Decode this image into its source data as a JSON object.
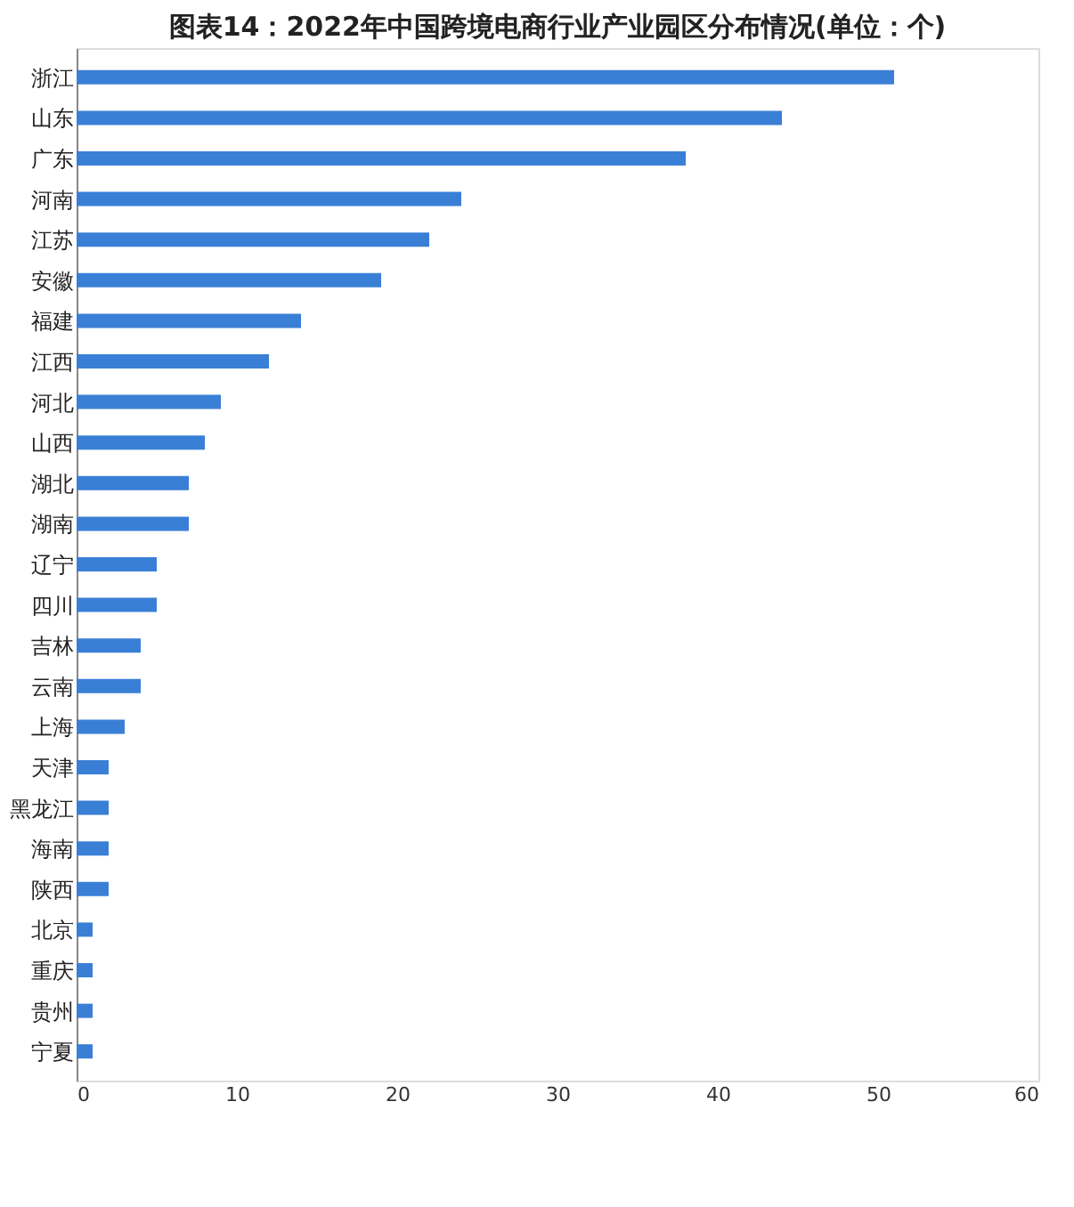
{
  "chart_data": {
    "type": "bar",
    "orientation": "horizontal",
    "title": "图表14：2022年中国跨境电商行业产业园区分布情况(单位：个)",
    "categories": [
      "浙江",
      "山东",
      "广东",
      "河南",
      "江苏",
      "安徽",
      "福建",
      "江西",
      "河北",
      "山西",
      "湖北",
      "湖南",
      "辽宁",
      "四川",
      "吉林",
      "云南",
      "上海",
      "天津",
      "黑龙江",
      "海南",
      "陕西",
      "北京",
      "重庆",
      "贵州",
      "宁夏"
    ],
    "values": [
      51,
      44,
      38,
      24,
      22,
      19,
      14,
      12,
      9,
      8,
      7,
      7,
      5,
      5,
      4,
      4,
      3,
      2,
      2,
      2,
      2,
      1,
      1,
      1,
      1
    ],
    "color": "#3a7fd6",
    "xlim": [
      0,
      60
    ],
    "xticks": [
      0,
      10,
      20,
      30,
      40,
      50,
      60
    ],
    "grid": false
  }
}
